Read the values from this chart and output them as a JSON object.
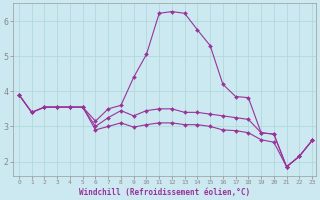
{
  "xlabel": "Windchill (Refroidissement éolien,°C)",
  "bg_color": "#cce8f0",
  "line_color": "#993399",
  "grid_color": "#aad8d8",
  "xlim_min": -0.5,
  "xlim_max": 23.3,
  "ylim_min": 1.6,
  "ylim_max": 6.5,
  "xticks": [
    0,
    1,
    2,
    3,
    4,
    5,
    6,
    7,
    8,
    9,
    10,
    11,
    12,
    13,
    14,
    15,
    16,
    17,
    18,
    19,
    20,
    21,
    22,
    23
  ],
  "yticks": [
    2,
    3,
    4,
    5,
    6
  ],
  "series1_x": [
    0,
    1,
    2,
    3,
    4,
    5,
    6,
    7,
    8,
    9,
    10,
    11,
    12,
    13,
    14,
    15,
    16,
    17,
    18,
    19,
    20,
    21,
    22,
    23
  ],
  "series1_y": [
    3.9,
    3.4,
    3.55,
    3.55,
    3.55,
    3.55,
    3.15,
    3.5,
    3.6,
    4.4,
    5.05,
    6.22,
    6.27,
    6.22,
    5.75,
    5.3,
    4.2,
    3.85,
    3.82,
    2.82,
    2.78,
    1.85,
    2.15,
    2.6
  ],
  "series2_x": [
    0,
    1,
    2,
    3,
    4,
    5,
    6,
    7,
    8,
    9,
    10,
    11,
    12,
    13,
    14,
    15,
    16,
    17,
    18,
    19,
    20,
    21,
    22,
    23
  ],
  "series2_y": [
    3.9,
    3.4,
    3.55,
    3.55,
    3.55,
    3.55,
    3.0,
    3.25,
    3.45,
    3.3,
    3.45,
    3.5,
    3.5,
    3.4,
    3.4,
    3.35,
    3.3,
    3.25,
    3.2,
    2.82,
    2.78,
    1.85,
    2.15,
    2.6
  ],
  "series3_x": [
    0,
    1,
    2,
    3,
    4,
    5,
    6,
    7,
    8,
    9,
    10,
    11,
    12,
    13,
    14,
    15,
    16,
    17,
    18,
    19,
    20,
    21,
    22,
    23
  ],
  "series3_y": [
    3.9,
    3.4,
    3.55,
    3.55,
    3.55,
    3.55,
    2.9,
    3.0,
    3.1,
    2.98,
    3.05,
    3.1,
    3.1,
    3.05,
    3.05,
    3.0,
    2.9,
    2.88,
    2.82,
    2.62,
    2.55,
    1.85,
    2.15,
    2.6
  ]
}
